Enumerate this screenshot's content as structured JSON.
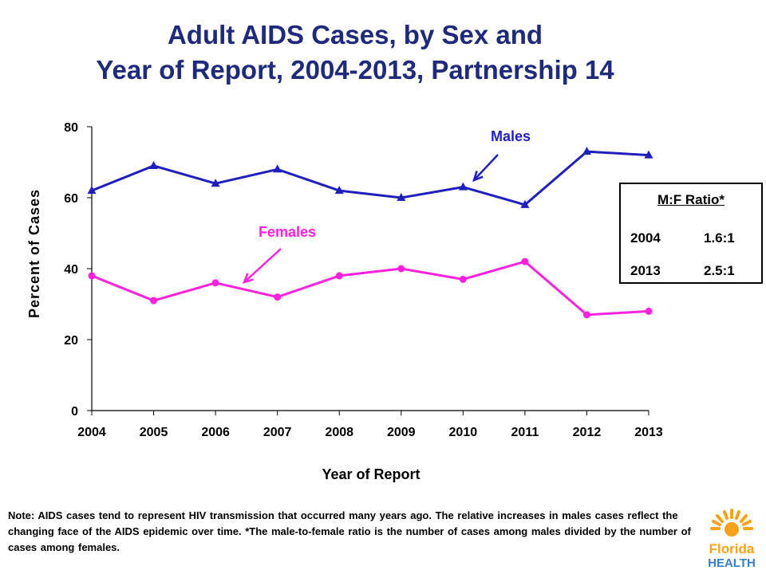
{
  "title_line1": "Adult AIDS Cases, by Sex and",
  "title_line2": "Year of Report, 2004-2013, Partnership 14",
  "chart_data": {
    "type": "line",
    "x": [
      "2004",
      "2005",
      "2006",
      "2007",
      "2008",
      "2009",
      "2010",
      "2011",
      "2012",
      "2013"
    ],
    "ylim": [
      0,
      80
    ],
    "yticks": [
      0,
      20,
      40,
      60,
      80
    ],
    "xlabel": "Year of Report",
    "ylabel": "Percent of Cases",
    "grid": false,
    "series": [
      {
        "name": "Males",
        "color": "#1f1fbf",
        "marker": "triangle",
        "values": [
          62,
          69,
          64,
          68,
          62,
          60,
          63,
          58,
          73,
          72
        ]
      },
      {
        "name": "Females",
        "color": "#ff22dd",
        "marker": "circle",
        "values": [
          38,
          31,
          36,
          32,
          38,
          40,
          37,
          42,
          27,
          28
        ]
      }
    ],
    "annotations": [
      {
        "text": "Males",
        "color": "#1f1fbf",
        "points_to": "2010"
      },
      {
        "text": "Females",
        "color": "#ff22dd",
        "points_to": "2006"
      }
    ]
  },
  "ratio_box": {
    "header": "M:F Ratio*",
    "rows": [
      {
        "year": "2004",
        "ratio": "1.6:1"
      },
      {
        "year": "2013",
        "ratio": "2.5:1"
      }
    ]
  },
  "note": "Note: AIDS cases tend to represent HIV transmission that occurred many years ago.  The relative increases in males cases reflect the changing face of the AIDS epidemic over time. *The male-to-female ratio is the number of cases among males divided by the number of cases among females.",
  "logo": {
    "line1": "Florida",
    "line2": "HEALTH"
  }
}
